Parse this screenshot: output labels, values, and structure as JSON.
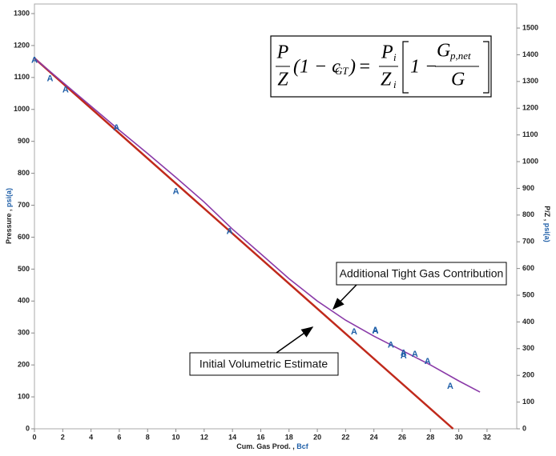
{
  "chart_data": {
    "type": "line",
    "y_label": "Pressure , ",
    "y_unit": "psi(a)",
    "y2_label": "P/Z , ",
    "y2_unit": "psi(a)",
    "x_label": "Cum. Gas Prod. , ",
    "x_unit": "Bcf",
    "xlim": [
      0,
      34.1
    ],
    "xticks": [
      0,
      2,
      4,
      6,
      8,
      10,
      12,
      14,
      16,
      18,
      20,
      22,
      24,
      26,
      28,
      30,
      32
    ],
    "ylim": [
      0,
      1330
    ],
    "yticks": [
      0,
      100,
      200,
      300,
      400,
      500,
      600,
      700,
      800,
      900,
      1000,
      1100,
      1200,
      1300
    ],
    "y2lim": [
      0,
      1590
    ],
    "y2ticks": [
      0,
      100,
      200,
      300,
      400,
      500,
      600,
      700,
      800,
      900,
      1000,
      1100,
      1200,
      1300,
      1400,
      1500
    ],
    "series": [
      {
        "kind": "line",
        "color": "#c0291b",
        "x": [
          0,
          29.6
        ],
        "values": [
          1160,
          0
        ]
      },
      {
        "kind": "line",
        "color": "#8a3aa8",
        "x": [
          0,
          2,
          4,
          6,
          8,
          10,
          12,
          14,
          16,
          18,
          20,
          22,
          24,
          26,
          28,
          30,
          31.5
        ],
        "values": [
          1160,
          1085,
          1010,
          935,
          862,
          787,
          710,
          625,
          548,
          470,
          400,
          340,
          290,
          245,
          200,
          150,
          115
        ]
      },
      {
        "kind": "points",
        "marker": "A",
        "color": "#1f5fa8",
        "x": [
          0,
          1.1,
          2.2,
          5.8,
          10,
          13.8,
          22.6,
          24.1,
          24.1,
          25.2,
          26.1,
          26.1,
          26.9,
          27.8,
          29.4
        ],
        "values": [
          1153,
          1095,
          1060,
          942,
          742,
          617,
          303,
          308,
          305,
          261,
          236,
          228,
          233,
          210,
          133
        ]
      }
    ],
    "annotations": [
      "Additional Tight Gas Contribution",
      "Initial Volumetric Estimate"
    ],
    "equation": {
      "p": "P",
      "z": "Z",
      "factor": "(1 − c",
      "factor_sub": "GT",
      "eq": "=",
      "pi": "P",
      "pi_sub": "i",
      "zi": "Z",
      "zi_sub": "i",
      "one": "1 −",
      "g": "G",
      "g_sub": "p,net",
      "gden": "G"
    }
  }
}
